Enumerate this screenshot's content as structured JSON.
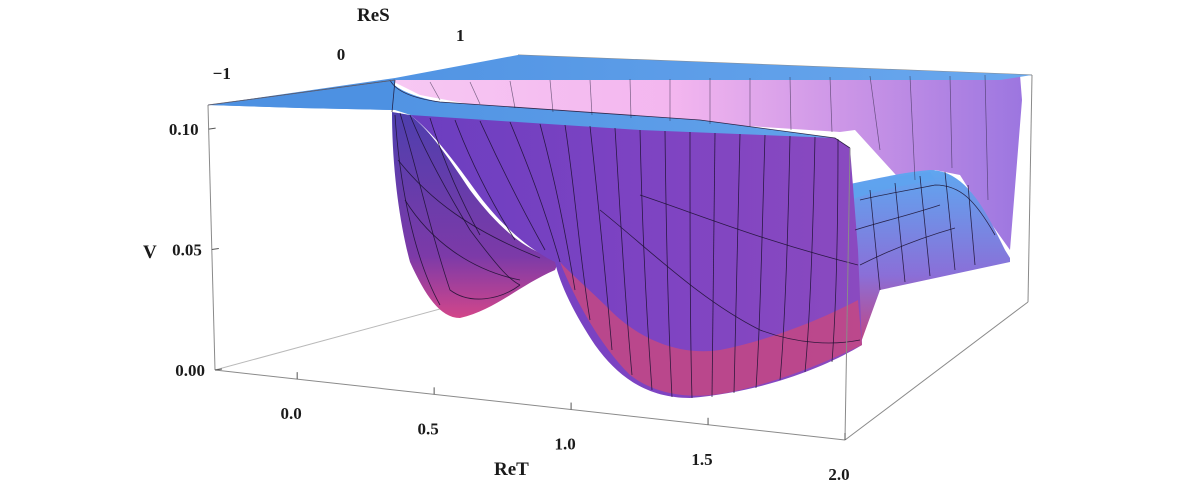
{
  "chart_data": {
    "type": "surface3d",
    "title": "",
    "xlabel": "ReT",
    "ylabel": "ReS",
    "zlabel": "V",
    "x_ticks": [
      "0.0",
      "0.5",
      "1.0",
      "1.5",
      "2.0"
    ],
    "y_ticks": [
      "−1",
      "0",
      "1"
    ],
    "z_ticks": [
      "0.00",
      "0.05",
      "0.10"
    ],
    "x_range": [
      -0.3,
      2.0
    ],
    "y_range": [
      -1.3,
      1.3
    ],
    "z_range": [
      0.0,
      0.11
    ],
    "description_features": {
      "minima_at_ReT": [
        0.5,
        1.5
      ],
      "maxima_at_ReT": [
        1.0,
        2.0
      ],
      "plateau_V": 0.11
    },
    "colors": {
      "surface_top": "#4f93e0",
      "surface_magenta": "#c2447e",
      "surface_purple": "#6a3fc4",
      "surface_pink": "#f0b8f0",
      "box_line": "#8a8a8a"
    }
  }
}
